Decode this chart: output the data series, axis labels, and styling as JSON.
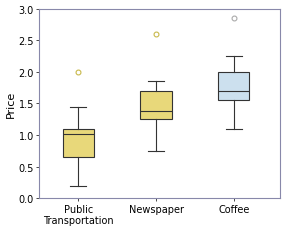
{
  "categories": [
    "Public\nTransportation",
    "Newspaper",
    "Coffee"
  ],
  "boxes": [
    {
      "q1": 0.65,
      "median": 1.02,
      "q3": 1.1,
      "whislo": 0.2,
      "whishi": 1.45,
      "fliers": [
        2.0
      ]
    },
    {
      "q1": 1.25,
      "median": 1.38,
      "q3": 1.7,
      "whislo": 0.75,
      "whishi": 1.85,
      "fliers": [
        2.6
      ]
    },
    {
      "q1": 1.55,
      "median": 1.7,
      "q3": 2.0,
      "whislo": 1.1,
      "whishi": 2.25,
      "fliers": [
        2.85
      ]
    }
  ],
  "box_colors": [
    "#e8d87a",
    "#e8d87a",
    "#cce0ee"
  ],
  "flier_edgecolors": [
    "#c8b84a",
    "#c8b84a",
    "#aaaaaa"
  ],
  "ylabel": "Price",
  "ylim": [
    0.0,
    3.0
  ],
  "yticks": [
    0.0,
    0.5,
    1.0,
    1.5,
    2.0,
    2.5,
    3.0
  ],
  "background_color": "#ffffff",
  "border_color": "#8888aa",
  "line_color": "#333333",
  "figsize": [
    2.86,
    2.32
  ],
  "dpi": 100,
  "box_width": 0.4
}
